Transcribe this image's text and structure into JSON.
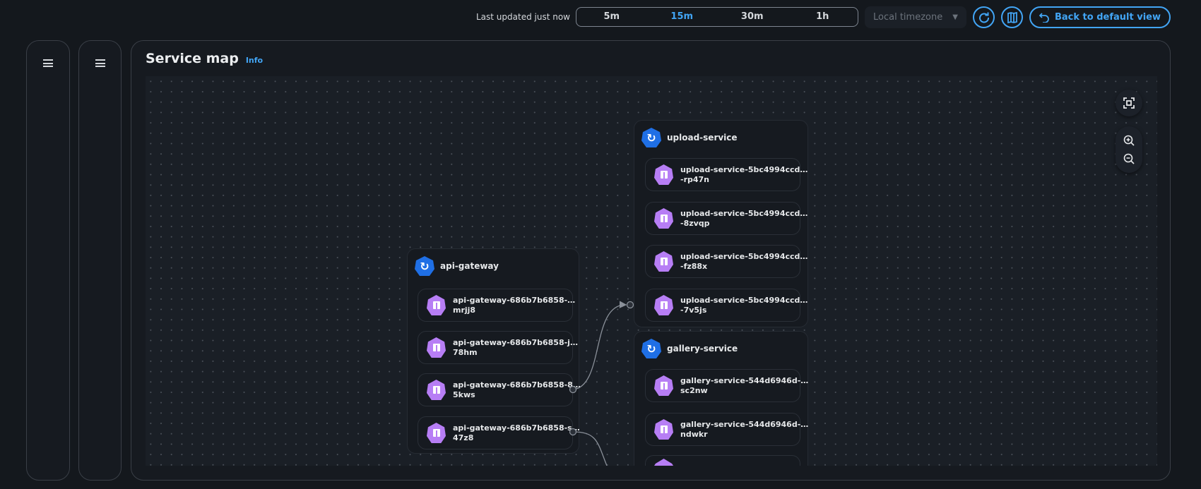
{
  "topbar": {
    "last_updated": "Last updated just now",
    "ranges": [
      "5m",
      "15m",
      "30m",
      "1h"
    ],
    "active_range": "15m",
    "timezone": "Local timezone",
    "back_label": "Back to default view"
  },
  "panel": {
    "title": "Service map",
    "info": "Info"
  },
  "colors": {
    "accent": "#42a5f5",
    "service": "#1f6fe5",
    "pod": "#b77ef5"
  },
  "services": [
    {
      "name": "api-gateway",
      "pods": [
        {
          "l1": "api-gateway-686b7b6858-…",
          "l2": "mrjj8"
        },
        {
          "l1": "api-gateway-686b7b6858-j…",
          "l2": "78hm"
        },
        {
          "l1": "api-gateway-686b7b6858-8…",
          "l2": "5kws"
        },
        {
          "l1": "api-gateway-686b7b6858-s…",
          "l2": "47z8"
        }
      ]
    },
    {
      "name": "upload-service",
      "pods": [
        {
          "l1": "upload-service-5bc4994ccd…",
          "l2": "-rp47n"
        },
        {
          "l1": "upload-service-5bc4994ccd…",
          "l2": "-8zvqp"
        },
        {
          "l1": "upload-service-5bc4994ccd…",
          "l2": "-fz88x"
        },
        {
          "l1": "upload-service-5bc4994ccd…",
          "l2": "-7v5js"
        }
      ]
    },
    {
      "name": "gallery-service",
      "pods": [
        {
          "l1": "gallery-service-544d6946d-…",
          "l2": "sc2nw"
        },
        {
          "l1": "gallery-service-544d6946d-…",
          "l2": "ndwkr"
        }
      ]
    }
  ]
}
